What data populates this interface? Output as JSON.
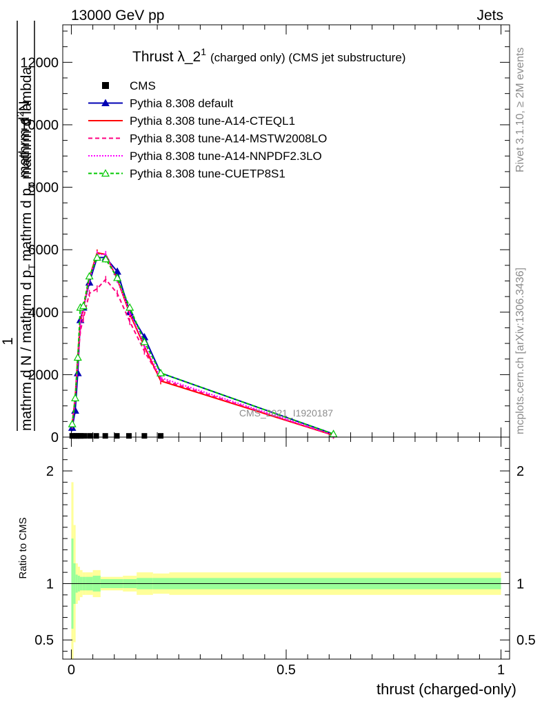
{
  "header": {
    "left": "13000 GeV pp",
    "right": "Jets"
  },
  "side_labels": {
    "rivet": "Rivet 3.1.10, ≥ 2M events",
    "mcplots": "mcplots.cern.ch [arXiv:1306.3436]"
  },
  "watermark": "CMS_2021_I1920187",
  "ratio_ylabel": "Ratio to CMS",
  "chart_data": {
    "type": "line",
    "title_main": "Thrust λ_2",
    "title_sup": "1",
    "title_rest": "(charged only) (CMS jet substructure)",
    "ylabel_top": "1",
    "ylabel_num1": "mathrm d",
    "ylabel_num1_sup": "2",
    "ylabel_num2": "N",
    "ylabel_den": "mathrm d N / mathrm d p",
    "ylabel_den_sub": "T",
    "ylabel_den_rest": "mathrm d p",
    "ylabel_den_rest_sub": "T",
    "ylabel_den_end": "mathrm d lambda",
    "xlabel": "thrust (charged-only)",
    "xlim": [
      -0.02,
      1.02
    ],
    "ylim": [
      0,
      13200
    ],
    "ratio_ylim": [
      0.33,
      2.3
    ],
    "x_ticks": [
      "0",
      "0.5",
      "1"
    ],
    "x_tick_values": [
      0,
      0.5,
      1
    ],
    "y_ticks": [
      "0",
      "2000",
      "4000",
      "6000",
      "8000",
      "10000",
      "12000"
    ],
    "y_tick_values": [
      0,
      2000,
      4000,
      6000,
      8000,
      10000,
      12000
    ],
    "ratio_ticks": [
      "0.5",
      "1",
      "2"
    ],
    "ratio_tick_values": [
      0.5,
      1,
      2
    ],
    "legend_position": "top-left",
    "cms": {
      "name": "CMS",
      "x": [
        0.002,
        0.007,
        0.012,
        0.017,
        0.022,
        0.03,
        0.043,
        0.058,
        0.079,
        0.106,
        0.134,
        0.17,
        0.208
      ],
      "y": [
        40,
        40,
        40,
        40,
        40,
        40,
        40,
        40,
        40,
        40,
        40,
        40,
        40
      ]
    },
    "series": [
      {
        "name": "Pythia 8.308 default",
        "color": "#0000b4",
        "dash": "",
        "marker": "triangle-filled",
        "x": [
          0.002,
          0.009,
          0.015,
          0.021,
          0.028,
          0.042,
          0.06,
          0.08,
          0.107,
          0.136,
          0.17,
          0.208,
          0.61
        ],
        "y": [
          300,
          850,
          2050,
          3750,
          4150,
          4950,
          5750,
          5750,
          5300,
          4000,
          3200,
          2050,
          100
        ]
      },
      {
        "name": "Pythia 8.308 tune-A14-CTEQL1",
        "color": "#ff0000",
        "dash": "",
        "marker": "none",
        "x": [
          0.002,
          0.009,
          0.015,
          0.021,
          0.028,
          0.042,
          0.06,
          0.08,
          0.107,
          0.136,
          0.17,
          0.208,
          0.61
        ],
        "y": [
          420,
          1300,
          2600,
          3700,
          4100,
          5100,
          5900,
          5850,
          5050,
          3950,
          2900,
          1800,
          60
        ]
      },
      {
        "name": "Pythia 8.308 tune-A14-MSTW2008LO",
        "color": "#ff0080",
        "dash": "6,4",
        "marker": "none",
        "x": [
          0.002,
          0.009,
          0.015,
          0.021,
          0.028,
          0.042,
          0.06,
          0.08,
          0.107,
          0.136,
          0.17,
          0.208,
          0.61
        ],
        "y": [
          380,
          1200,
          2400,
          3400,
          3800,
          4600,
          4750,
          5050,
          4600,
          3700,
          2750,
          1850,
          60
        ]
      },
      {
        "name": "Pythia 8.308 tune-A14-NNPDF2.3LO",
        "color": "#ff00ff",
        "dash": "2,2",
        "marker": "none",
        "x": [
          0.002,
          0.009,
          0.015,
          0.021,
          0.028,
          0.042,
          0.06,
          0.08,
          0.107,
          0.136,
          0.17,
          0.208,
          0.61
        ],
        "y": [
          400,
          1250,
          2550,
          3650,
          4100,
          5050,
          5850,
          5850,
          5050,
          4000,
          2950,
          1900,
          80
        ]
      },
      {
        "name": "Pythia 8.308 tune-CUETP8S1",
        "color": "#00c800",
        "dash": "5,3",
        "marker": "triangle-open",
        "x": [
          0.002,
          0.009,
          0.015,
          0.021,
          0.028,
          0.042,
          0.06,
          0.08,
          0.107,
          0.136,
          0.17,
          0.208,
          0.61
        ],
        "y": [
          420,
          1250,
          2550,
          4150,
          4200,
          5150,
          5750,
          5700,
          5100,
          4150,
          3050,
          2050,
          100
        ]
      }
    ],
    "ratio_bands": {
      "x_edges": [
        0.0,
        0.005,
        0.01,
        0.015,
        0.02,
        0.026,
        0.034,
        0.05,
        0.068,
        0.09,
        0.12,
        0.152,
        0.19,
        0.228,
        1.0
      ],
      "stat": [
        0.4,
        0.18,
        0.08,
        0.07,
        0.06,
        0.06,
        0.06,
        0.07,
        0.04,
        0.04,
        0.04,
        0.05,
        0.05,
        0.05
      ],
      "total": [
        0.9,
        0.52,
        0.18,
        0.15,
        0.12,
        0.1,
        0.1,
        0.12,
        0.06,
        0.06,
        0.07,
        0.1,
        0.09,
        0.1
      ]
    }
  }
}
